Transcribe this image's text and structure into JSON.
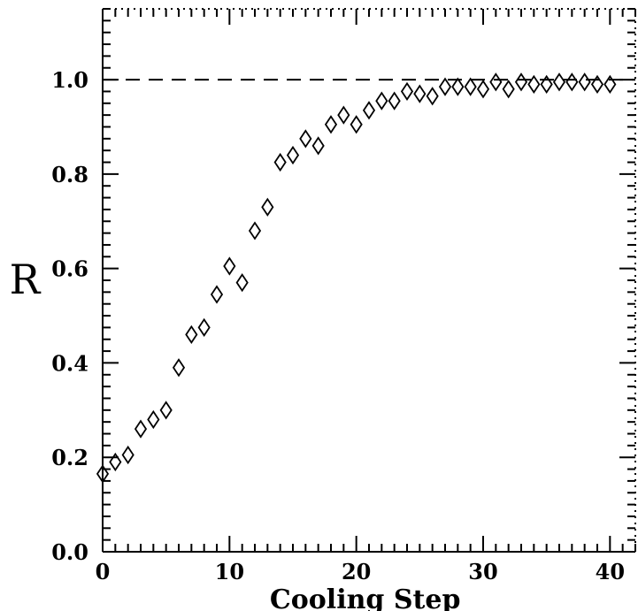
{
  "chart_data": {
    "type": "scatter",
    "title": "",
    "xlabel": "Cooling Step",
    "ylabel": "R",
    "xlim": [
      0,
      42
    ],
    "ylim": [
      0,
      1.15
    ],
    "x_ticks": [
      0,
      10,
      20,
      30,
      40
    ],
    "x_tick_labels": [
      "0",
      "10",
      "20",
      "30",
      "40"
    ],
    "y_ticks": [
      0,
      0.2,
      0.4,
      0.6,
      0.8,
      1.0
    ],
    "y_tick_labels": [
      "0.0",
      "0.2",
      "0.4",
      "0.6",
      "0.8",
      "1.0"
    ],
    "reference_line": {
      "y": 1.0,
      "style": "dashed"
    },
    "marker": "diamond-open",
    "grid": false,
    "series": [
      {
        "x": [
          0,
          1,
          2,
          3,
          4,
          5,
          6,
          7,
          8,
          9,
          10,
          11,
          12,
          13,
          14,
          15,
          16,
          17,
          18,
          19,
          20,
          21,
          22,
          23,
          24,
          25,
          26,
          27,
          28,
          29,
          30,
          31,
          32,
          33,
          34,
          35,
          36,
          37,
          38,
          39,
          40
        ],
        "y": [
          0.165,
          0.19,
          0.205,
          0.26,
          0.28,
          0.3,
          0.39,
          0.46,
          0.475,
          0.545,
          0.605,
          0.57,
          0.68,
          0.73,
          0.825,
          0.84,
          0.875,
          0.86,
          0.905,
          0.925,
          0.905,
          0.935,
          0.955,
          0.955,
          0.975,
          0.97,
          0.965,
          0.985,
          0.985,
          0.985,
          0.98,
          0.995,
          0.98,
          0.995,
          0.99,
          0.99,
          0.995,
          0.995,
          0.995,
          0.99,
          0.99
        ]
      }
    ]
  }
}
